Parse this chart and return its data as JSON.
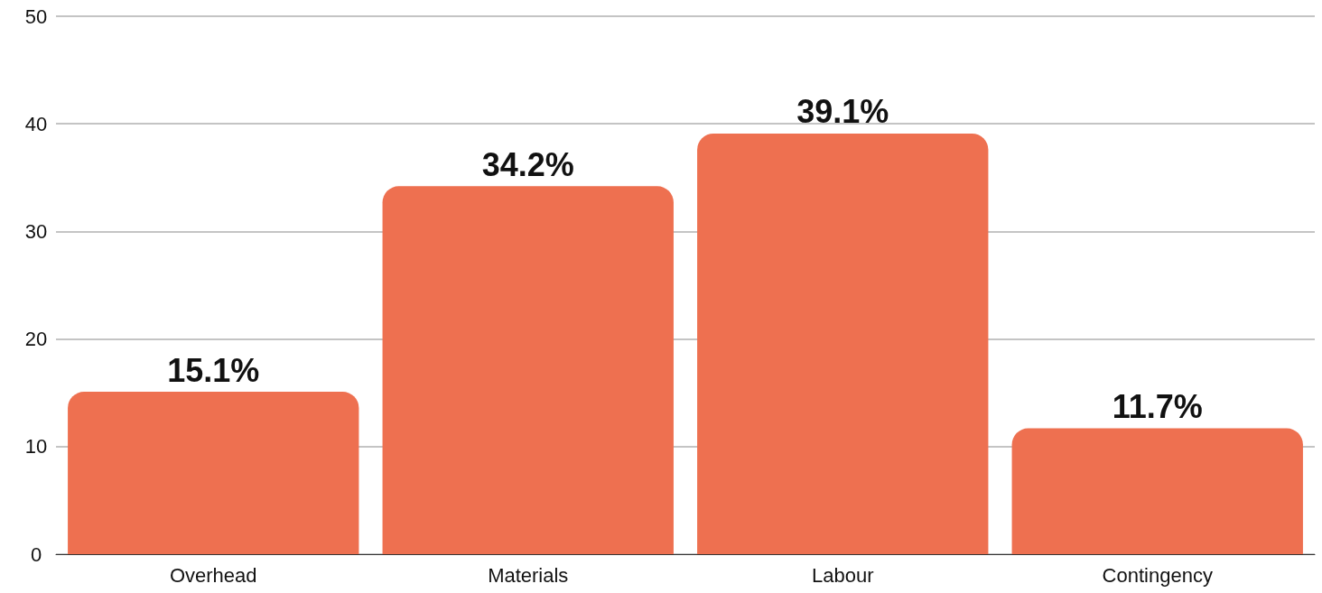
{
  "chart_data": {
    "type": "bar",
    "categories": [
      "Overhead",
      "Materials",
      "Labour",
      "Contingency"
    ],
    "values": [
      15.1,
      34.2,
      39.1,
      11.7
    ],
    "value_labels": [
      "15.1%",
      "34.2%",
      "39.1%",
      "11.7%"
    ],
    "color": "#ee7050",
    "ylim": [
      0,
      50
    ],
    "yticks": [
      0,
      10,
      20,
      30,
      40,
      50
    ],
    "grid": "y"
  }
}
